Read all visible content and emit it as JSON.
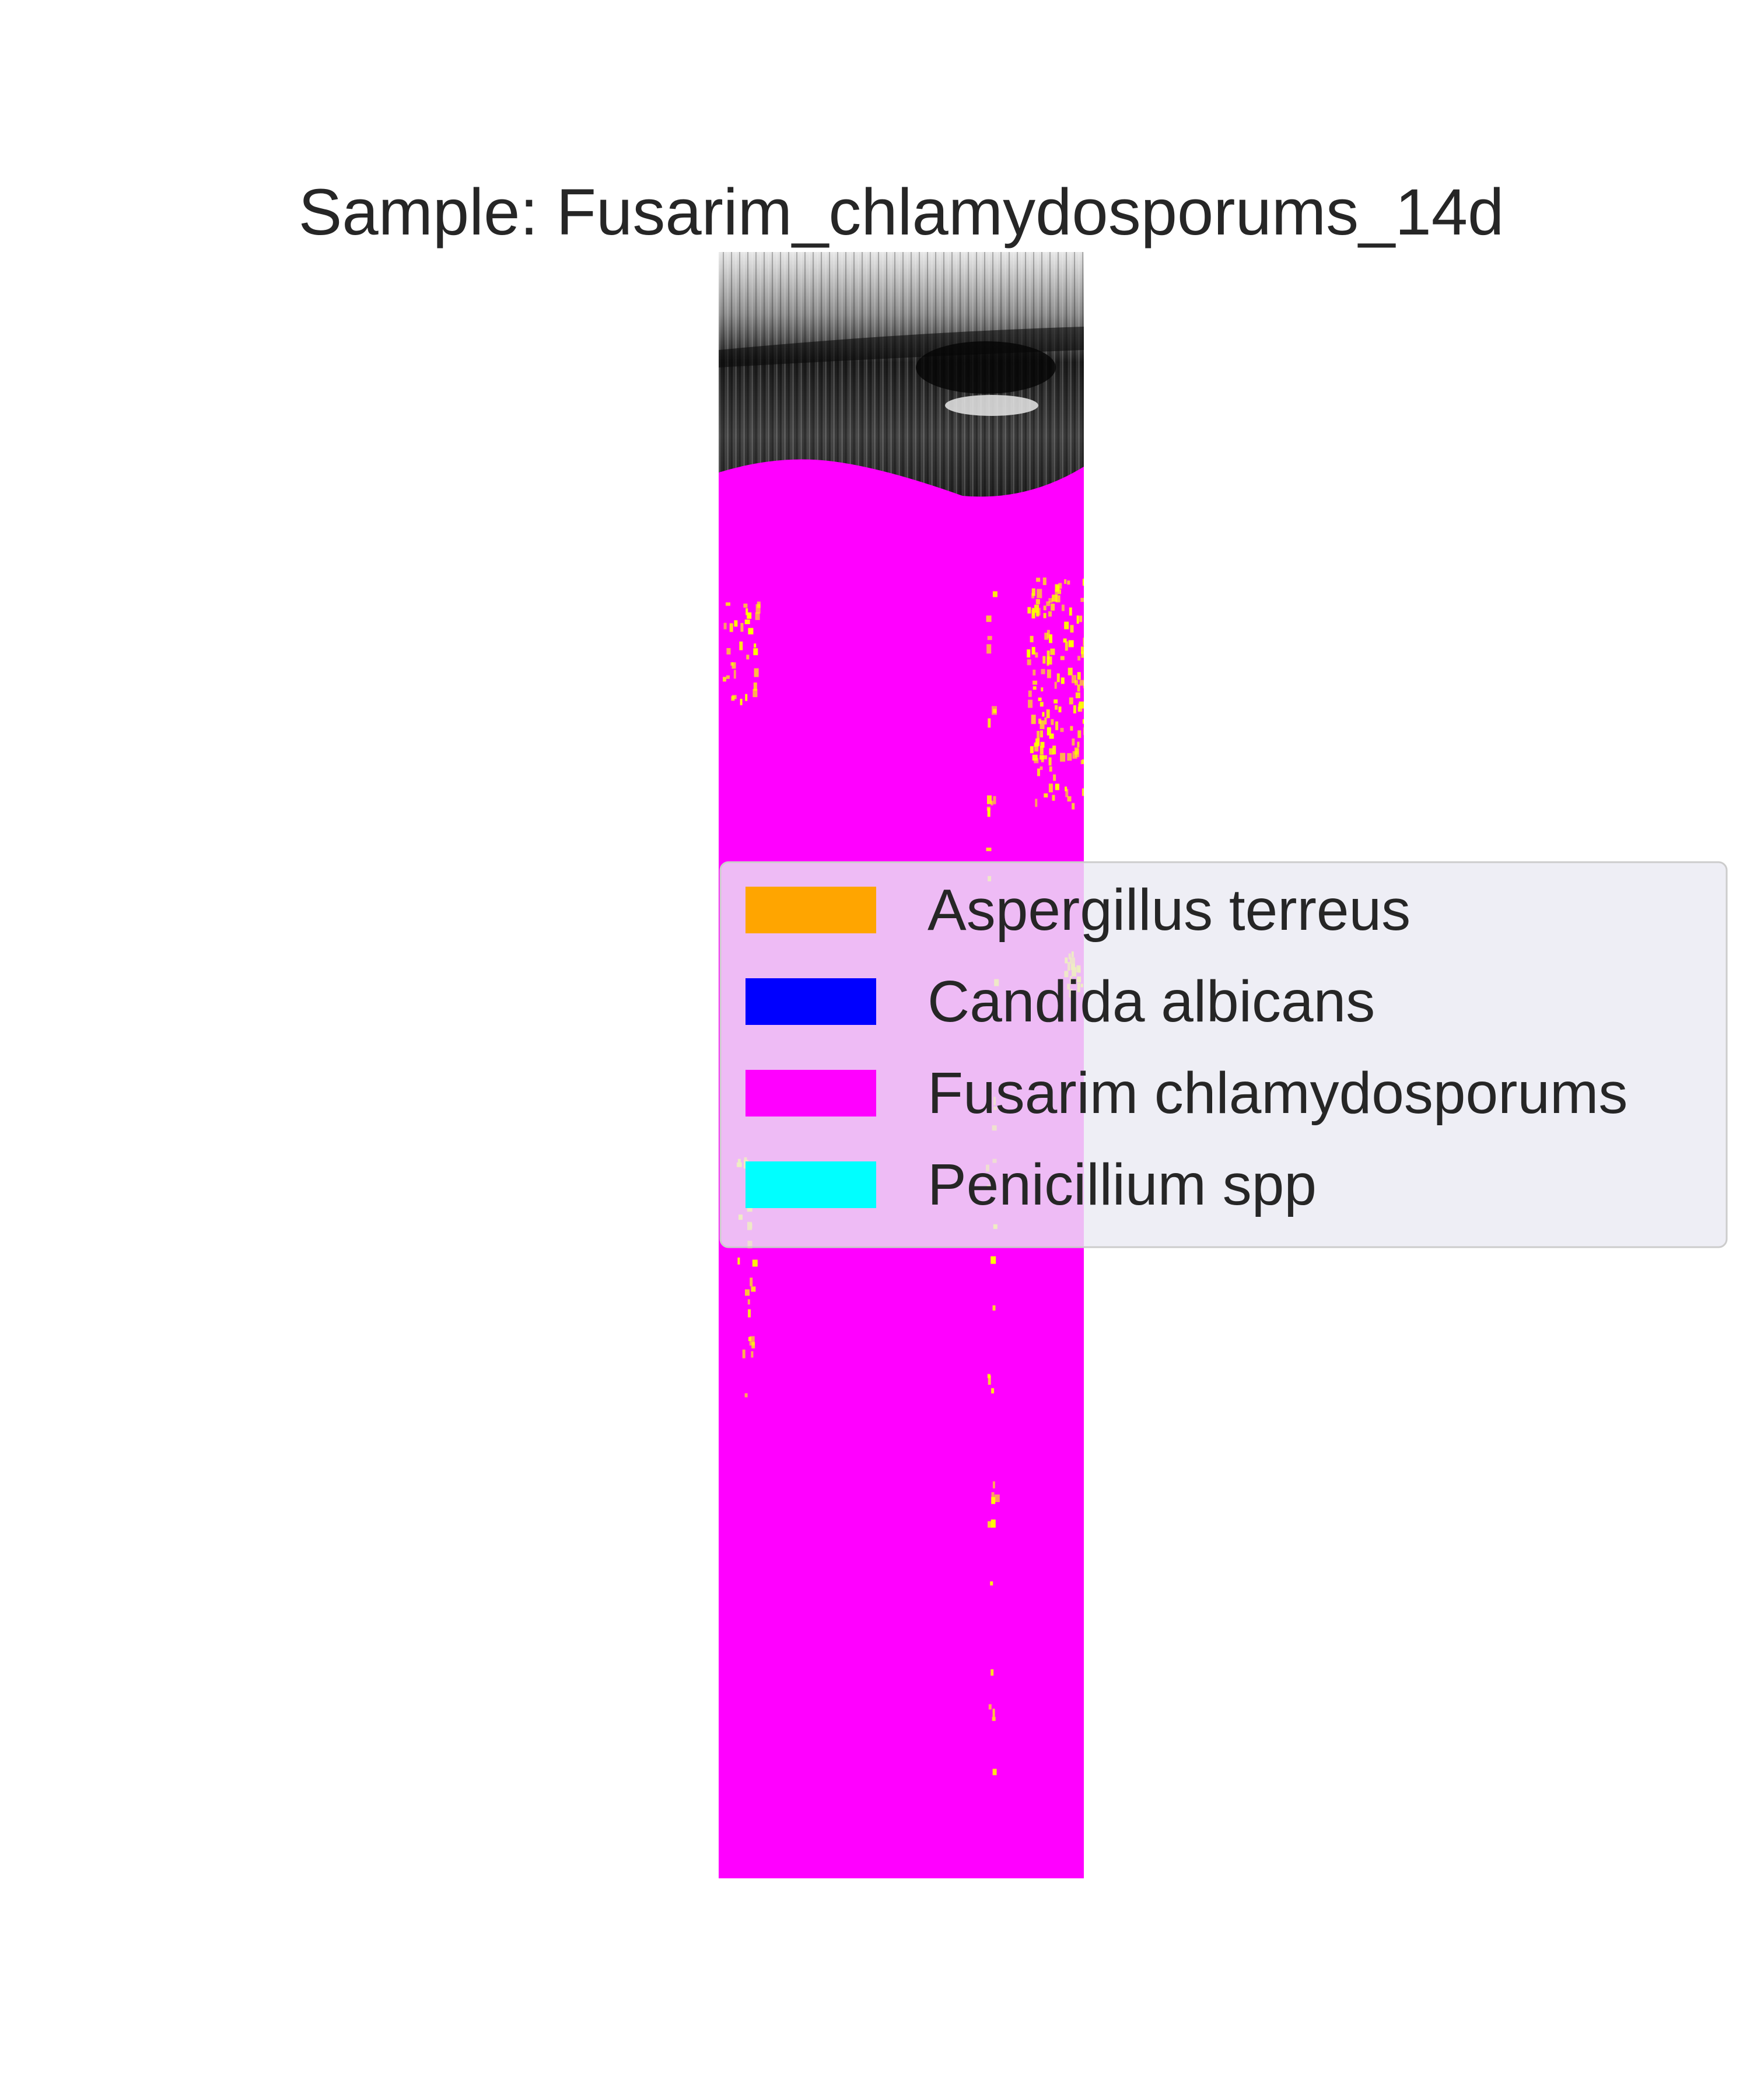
{
  "chart_data": {
    "type": "heatmap",
    "title": "Sample: Fusarim_chlamydosporums_14d",
    "xlabel": "",
    "ylabel": "",
    "axes_visible": false,
    "grid": false,
    "legend_placement": "center-right",
    "legend": [
      {
        "label": "Aspergillus terreus",
        "color": "#ffa500"
      },
      {
        "label": "Candida albicans",
        "color": "#0000ff"
      },
      {
        "label": "Fusarim chlamydosporums",
        "color": "#ff00ff"
      },
      {
        "label": "Penicillium spp",
        "color": "#00ffff"
      }
    ],
    "background_image": "grayscale scan",
    "dominant_class": "Fusarim chlamydosporums",
    "minor_pixels_color": "#ffff00"
  }
}
